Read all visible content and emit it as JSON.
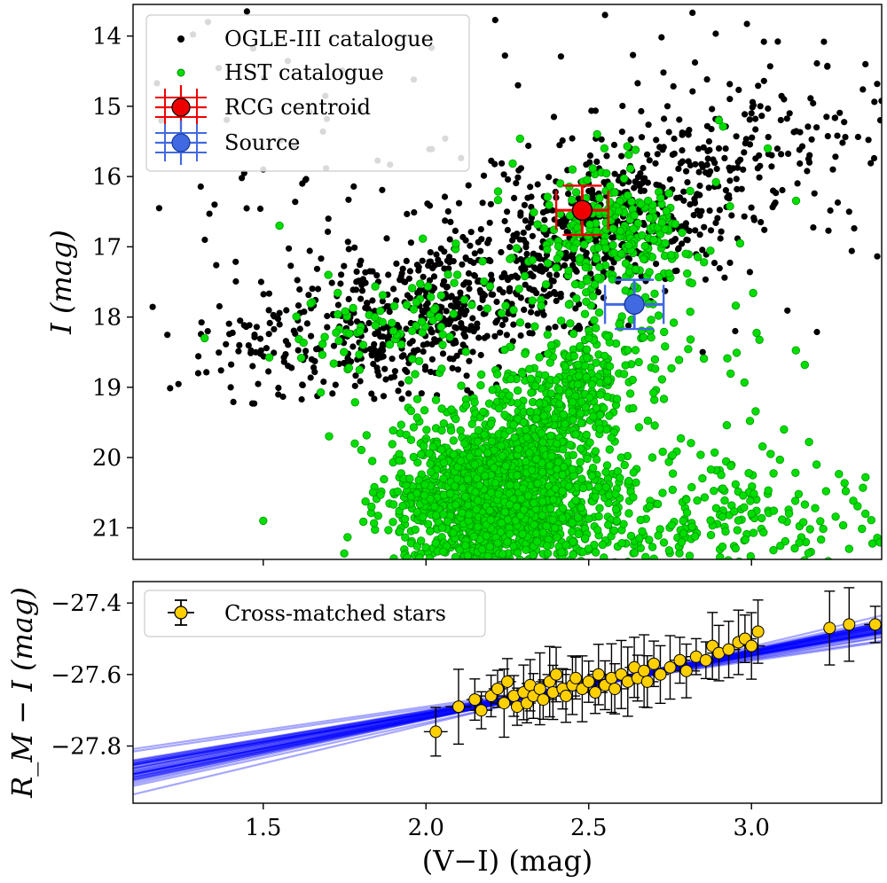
{
  "chart_data": [
    {
      "type": "scatter",
      "title": "",
      "xlabel": "(V−I) (mag)",
      "ylabel": "I (mag)",
      "xlim": [
        1.1,
        3.4
      ],
      "ylim": [
        21.45,
        13.55
      ],
      "y_inverted": true,
      "yticks": [
        "14",
        "15",
        "16",
        "17",
        "18",
        "19",
        "20",
        "21"
      ],
      "legend": {
        "placement": "top-left",
        "entries": [
          "OGLE-III catalogue",
          "HST catalogue",
          "RCG centroid",
          "Source"
        ]
      },
      "series": [
        {
          "name": "OGLE-III catalogue",
          "color": "#000000",
          "description_values": "dense clump over V-I 1.2-3.4, I 13.7-19.2; red giant branch and red clump",
          "sample_points": [
            [
              1.45,
              13.65
            ],
            [
              1.18,
              16.45
            ],
            [
              1.33,
              13.8
            ],
            [
              1.5,
              15.9
            ],
            [
              1.62,
              16.1
            ],
            [
              1.7,
              16.6
            ],
            [
              1.8,
              17.2
            ],
            [
              1.9,
              17.6
            ],
            [
              2.0,
              17.9
            ],
            [
              2.1,
              18.0
            ],
            [
              2.2,
              17.4
            ],
            [
              2.3,
              16.8
            ],
            [
              2.4,
              16.3
            ],
            [
              2.5,
              16.1
            ],
            [
              2.6,
              16.0
            ],
            [
              2.7,
              16.4
            ],
            [
              2.8,
              16.9
            ],
            [
              2.9,
              15.6
            ],
            [
              3.0,
              15.1
            ],
            [
              3.1,
              14.9
            ],
            [
              3.2,
              15.3
            ],
            [
              3.25,
              15.9
            ],
            [
              3.3,
              16.5
            ],
            [
              3.35,
              14.4
            ],
            [
              2.55,
              13.7
            ],
            [
              1.3,
              18.8
            ],
            [
              1.4,
              19.0
            ],
            [
              2.95,
              18.2
            ],
            [
              2.85,
              18.5
            ]
          ]
        },
        {
          "name": "HST catalogue",
          "color": "#00dd00",
          "description_values": "main-sequence turn-off and subgiant stars, V-I 1.3-3.4, I 15.3-21.5",
          "sample_points": [
            [
              2.2,
              20.5
            ],
            [
              2.25,
              21.2
            ],
            [
              2.15,
              20.1
            ],
            [
              2.3,
              19.5
            ],
            [
              2.4,
              18.9
            ],
            [
              2.5,
              18.3
            ],
            [
              2.6,
              17.1
            ],
            [
              2.55,
              16.5
            ],
            [
              2.45,
              15.9
            ],
            [
              2.7,
              16.9
            ],
            [
              1.9,
              18.2
            ],
            [
              1.7,
              17.4
            ],
            [
              1.55,
              16.7
            ],
            [
              1.32,
              18.3
            ],
            [
              1.5,
              20.9
            ],
            [
              1.95,
              20.3
            ],
            [
              2.05,
              21.0
            ],
            [
              2.6,
              20.0
            ],
            [
              2.8,
              20.6
            ],
            [
              3.0,
              20.8
            ],
            [
              3.1,
              19.6
            ],
            [
              3.2,
              20.1
            ],
            [
              3.35,
              20.8
            ],
            [
              3.3,
              21.3
            ],
            [
              2.9,
              15.2
            ],
            [
              3.05,
              15.6
            ]
          ]
        },
        {
          "name": "RCG centroid",
          "color": "#ee0000",
          "x": 2.48,
          "y": 16.48,
          "xerr": 0.08,
          "yerr": 0.35
        },
        {
          "name": "Source",
          "color": "#4169e1",
          "x": 2.64,
          "y": 17.82,
          "xerr": 0.09,
          "yerr": 0.35
        }
      ]
    },
    {
      "type": "scatter",
      "title": "",
      "xlabel": "(V−I) (mag)",
      "ylabel": "R_M − I (mag)",
      "xlim": [
        1.1,
        3.4
      ],
      "ylim": [
        -27.96,
        -27.34
      ],
      "xticks": [
        "1.5",
        "2.0",
        "2.5",
        "3.0"
      ],
      "yticks": [
        "−27.4",
        "−27.6",
        "−27.8"
      ],
      "legend": {
        "placement": "top-left",
        "entries": [
          "Cross-matched stars"
        ]
      },
      "fit": {
        "slope": 0.175,
        "intercept": -28.065,
        "color": "#0000ff",
        "n_samples": 40
      },
      "series": [
        {
          "name": "Cross-matched stars",
          "color": "#ffd000",
          "points": [
            [
              2.03,
              -27.76
            ],
            [
              2.1,
              -27.69
            ],
            [
              2.15,
              -27.67
            ],
            [
              2.17,
              -27.7
            ],
            [
              2.2,
              -27.66
            ],
            [
              2.22,
              -27.64
            ],
            [
              2.24,
              -27.68
            ],
            [
              2.25,
              -27.62
            ],
            [
              2.27,
              -27.66
            ],
            [
              2.28,
              -27.69
            ],
            [
              2.3,
              -27.65
            ],
            [
              2.31,
              -27.68
            ],
            [
              2.32,
              -27.63
            ],
            [
              2.33,
              -27.66
            ],
            [
              2.35,
              -27.64
            ],
            [
              2.36,
              -27.67
            ],
            [
              2.38,
              -27.62
            ],
            [
              2.39,
              -27.65
            ],
            [
              2.4,
              -27.6
            ],
            [
              2.42,
              -27.64
            ],
            [
              2.43,
              -27.66
            ],
            [
              2.45,
              -27.63
            ],
            [
              2.46,
              -27.61
            ],
            [
              2.48,
              -27.64
            ],
            [
              2.5,
              -27.62
            ],
            [
              2.52,
              -27.65
            ],
            [
              2.53,
              -27.6
            ],
            [
              2.55,
              -27.63
            ],
            [
              2.57,
              -27.61
            ],
            [
              2.58,
              -27.64
            ],
            [
              2.6,
              -27.6
            ],
            [
              2.62,
              -27.62
            ],
            [
              2.64,
              -27.58
            ],
            [
              2.65,
              -27.61
            ],
            [
              2.67,
              -27.59
            ],
            [
              2.68,
              -27.62
            ],
            [
              2.7,
              -27.57
            ],
            [
              2.72,
              -27.6
            ],
            [
              2.75,
              -27.58
            ],
            [
              2.78,
              -27.56
            ],
            [
              2.8,
              -27.59
            ],
            [
              2.83,
              -27.55
            ],
            [
              2.86,
              -27.56
            ],
            [
              2.88,
              -27.52
            ],
            [
              2.9,
              -27.54
            ],
            [
              2.93,
              -27.53
            ],
            [
              2.96,
              -27.51
            ],
            [
              2.98,
              -27.5
            ],
            [
              3.0,
              -27.52
            ],
            [
              3.02,
              -27.48
            ],
            [
              3.24,
              -27.47
            ],
            [
              3.3,
              -27.46
            ],
            [
              3.38,
              -27.46
            ]
          ],
          "yerr_typical": 0.07,
          "xerr_typical": 0.03
        }
      ]
    }
  ]
}
